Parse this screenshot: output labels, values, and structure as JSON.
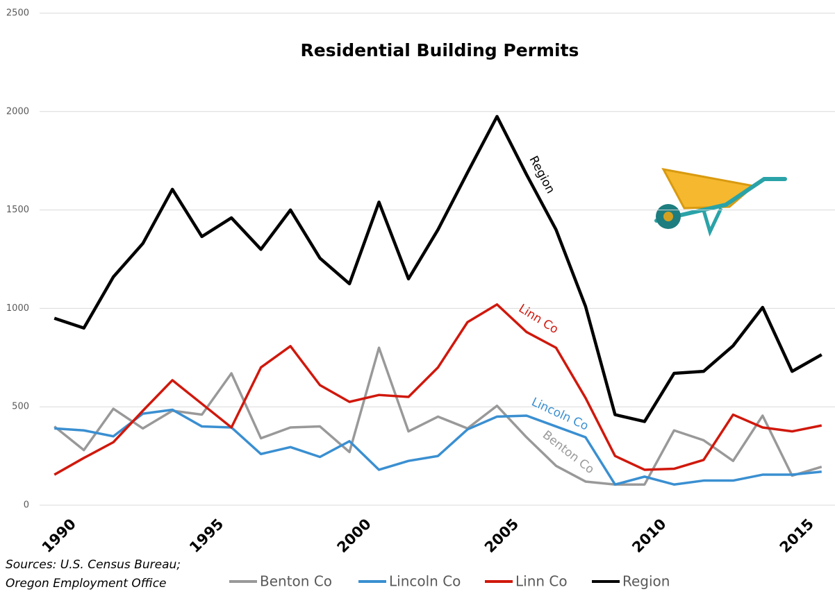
{
  "chart_data": {
    "type": "line",
    "title": "Residential Building Permits",
    "x": [
      1990,
      1991,
      1992,
      1993,
      1994,
      1995,
      1996,
      1997,
      1998,
      1999,
      2000,
      2001,
      2002,
      2003,
      2004,
      2005,
      2006,
      2007,
      2008,
      2009,
      2010,
      2011,
      2012,
      2013,
      2014,
      2015,
      2016
    ],
    "xlim": [
      1989.5,
      2016.5
    ],
    "xticks": [
      1990,
      1995,
      2000,
      2005,
      2010,
      2015
    ],
    "ylim": [
      0,
      2500
    ],
    "yticks": [
      0,
      500,
      1000,
      1500,
      2000,
      2500
    ],
    "grid": true,
    "series": [
      {
        "name": "Benton Co",
        "color": "#999999",
        "values": [
          400,
          280,
          490,
          390,
          480,
          460,
          670,
          340,
          395,
          400,
          270,
          800,
          375,
          450,
          390,
          505,
          345,
          200,
          120,
          105,
          105,
          380,
          330,
          225,
          455,
          150,
          195
        ]
      },
      {
        "name": "Lincoln Co",
        "color": "#3a8fd1",
        "values": [
          390,
          380,
          350,
          465,
          485,
          400,
          395,
          260,
          295,
          245,
          325,
          180,
          225,
          250,
          385,
          450,
          455,
          400,
          345,
          105,
          145,
          105,
          125,
          125,
          155,
          155,
          170
        ]
      },
      {
        "name": "Linn Co",
        "color": "#d0180c",
        "values": [
          155,
          240,
          320,
          480,
          635,
          515,
          395,
          700,
          808,
          610,
          525,
          560,
          550,
          700,
          930,
          1020,
          880,
          800,
          545,
          250,
          180,
          185,
          230,
          460,
          395,
          375,
          405
        ]
      },
      {
        "name": "Region",
        "color": "#000000",
        "values": [
          950,
          900,
          1160,
          1330,
          1605,
          1365,
          1460,
          1300,
          1500,
          1255,
          1125,
          1540,
          1150,
          1400,
          1690,
          1975,
          1680,
          1400,
          1010,
          460,
          425,
          670,
          680,
          810,
          1005,
          680,
          765
        ]
      }
    ],
    "annotations": [
      "Region",
      "Linn Co",
      "Lincoln Co",
      "Benton Co"
    ],
    "source": [
      "Sources: U.S. Census Bureau;",
      "Oregon Employment Office"
    ]
  }
}
